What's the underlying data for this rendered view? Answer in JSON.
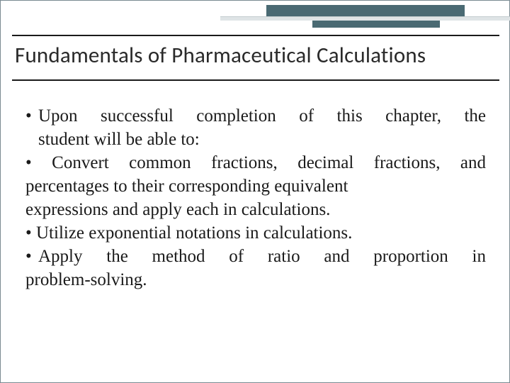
{
  "decor": {
    "accent_color": "#4a6a73",
    "light_color": "#dfe4e6",
    "rule_color": "#1a1a1a"
  },
  "title": {
    "text": "Fundamentals of Pharmaceutical Calculations",
    "font_family": "Trebuchet MS",
    "font_size": 31,
    "color": "#2a2a2a"
  },
  "body": {
    "font_family": "Georgia",
    "font_size": 25,
    "color": "#1a1a1a",
    "lines": {
      "l1a": "Upon successful completion of this chapter, the",
      "l1b": "student will be able to:",
      "l2a": "• Convert common fractions, decimal fractions, and",
      "l2b": "percentages to their corresponding equivalent",
      "l2c": "expressions and apply each in calculations.",
      "l3": "• Utilize exponential notations in calculations.",
      "l4a": "Apply the method of ratio and proportion in",
      "l4b": "problem-solving."
    }
  }
}
